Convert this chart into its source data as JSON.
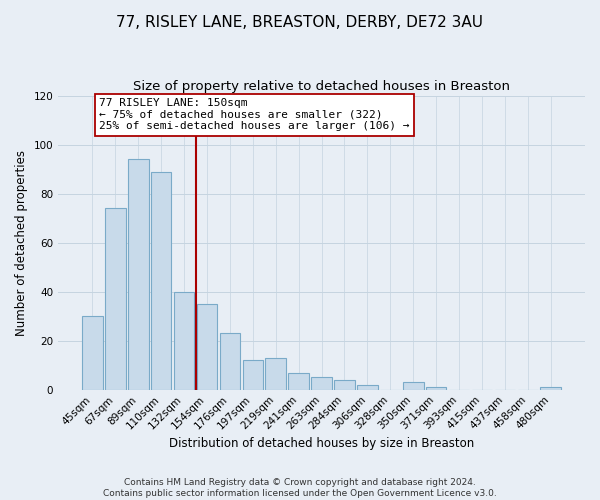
{
  "title": "77, RISLEY LANE, BREASTON, DERBY, DE72 3AU",
  "subtitle": "Size of property relative to detached houses in Breaston",
  "xlabel": "Distribution of detached houses by size in Breaston",
  "ylabel": "Number of detached properties",
  "bar_labels": [
    "45sqm",
    "67sqm",
    "89sqm",
    "110sqm",
    "132sqm",
    "154sqm",
    "176sqm",
    "197sqm",
    "219sqm",
    "241sqm",
    "263sqm",
    "284sqm",
    "306sqm",
    "328sqm",
    "350sqm",
    "371sqm",
    "393sqm",
    "415sqm",
    "437sqm",
    "458sqm",
    "480sqm"
  ],
  "bar_values": [
    30,
    74,
    94,
    89,
    40,
    35,
    23,
    12,
    13,
    7,
    5,
    4,
    2,
    0,
    3,
    1,
    0,
    0,
    0,
    0,
    1
  ],
  "bar_color": "#c8daea",
  "bar_edge_color": "#7aaac8",
  "vline_x": 4.5,
  "vline_color": "#aa0000",
  "annotation_title": "77 RISLEY LANE: 150sqm",
  "annotation_line1": "← 75% of detached houses are smaller (322)",
  "annotation_line2": "25% of semi-detached houses are larger (106) →",
  "annotation_box_color": "#ffffff",
  "annotation_box_edge": "#aa0000",
  "ylim": [
    0,
    120
  ],
  "yticks": [
    0,
    20,
    40,
    60,
    80,
    100,
    120
  ],
  "footer1": "Contains HM Land Registry data © Crown copyright and database right 2024.",
  "footer2": "Contains public sector information licensed under the Open Government Licence v3.0.",
  "bg_color": "#e8eef5",
  "plot_bg_color": "#e8eef5",
  "title_fontsize": 11,
  "subtitle_fontsize": 9.5,
  "axis_label_fontsize": 8.5,
  "tick_fontsize": 7.5,
  "footer_fontsize": 6.5
}
